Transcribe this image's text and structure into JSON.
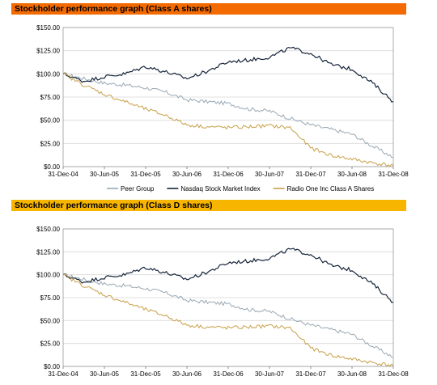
{
  "chart_data": [
    {
      "type": "line",
      "title": "Stockholder performance graph (Class A shares)",
      "x_tick_labels": [
        "31-Dec-04",
        "30-Jun-05",
        "31-Dec-05",
        "30-Jun-06",
        "31-Dec-06",
        "30-Jun-07",
        "31-Dec-07",
        "30-Jun-08",
        "31-Dec-08"
      ],
      "y_tick_labels": [
        "$0.00",
        "$25.00",
        "$50.00",
        "$75.00",
        "$100.00",
        "$125.00",
        "$150.00"
      ],
      "ylim": [
        0,
        150
      ],
      "grid": true,
      "legend_position": "bottom",
      "x": [
        0,
        0.25,
        0.5,
        0.75,
        1,
        1.25,
        1.5,
        1.75,
        2,
        2.25,
        2.5,
        2.75,
        3,
        3.25,
        3.5,
        3.75,
        4
      ],
      "series": [
        {
          "name": "Peer Group",
          "color": "#9aa9b4",
          "values": [
            100,
            95,
            90,
            88,
            85,
            80,
            72,
            70,
            68,
            62,
            60,
            52,
            45,
            40,
            35,
            22,
            10
          ]
        },
        {
          "name": "Nasdaq Stock Market Index",
          "color": "#15243a",
          "values": [
            100,
            92,
            97,
            100,
            108,
            102,
            95,
            103,
            113,
            115,
            118,
            128,
            122,
            110,
            105,
            90,
            70
          ]
        },
        {
          "name": "Radio One Inc Class A Shares",
          "color": "#c8a048",
          "values": [
            100,
            88,
            78,
            70,
            62,
            55,
            45,
            43,
            42,
            43,
            44,
            42,
            20,
            12,
            8,
            4,
            1
          ]
        }
      ]
    },
    {
      "type": "line",
      "title": "Stockholder performance graph (Class D shares)",
      "x_tick_labels": [
        "31-Dec-04",
        "30-Jun-05",
        "31-Dec-05",
        "30-Jun-06",
        "31-Dec-06",
        "30-Jun-07",
        "31-Dec-07",
        "30-Jun-08",
        "31-Dec-08"
      ],
      "y_tick_labels": [
        "$0.00",
        "$25.00",
        "$50.00",
        "$75.00",
        "$100.00",
        "$125.00",
        "$150.00"
      ],
      "ylim": [
        0,
        150
      ],
      "grid": true,
      "legend_position": "none",
      "x": [
        0,
        0.25,
        0.5,
        0.75,
        1,
        1.25,
        1.5,
        1.75,
        2,
        2.25,
        2.5,
        2.75,
        3,
        3.25,
        3.5,
        3.75,
        4
      ],
      "series": [
        {
          "color": "#9aa9b4",
          "values": [
            100,
            95,
            90,
            88,
            85,
            80,
            72,
            70,
            68,
            62,
            60,
            52,
            45,
            40,
            35,
            22,
            10
          ]
        },
        {
          "color": "#15243a",
          "values": [
            100,
            92,
            97,
            100,
            108,
            102,
            95,
            103,
            113,
            115,
            118,
            128,
            122,
            110,
            105,
            90,
            70
          ]
        },
        {
          "color": "#c8a048",
          "values": [
            100,
            88,
            78,
            70,
            62,
            55,
            45,
            43,
            42,
            43,
            44,
            42,
            20,
            12,
            8,
            4,
            1
          ]
        }
      ]
    }
  ]
}
